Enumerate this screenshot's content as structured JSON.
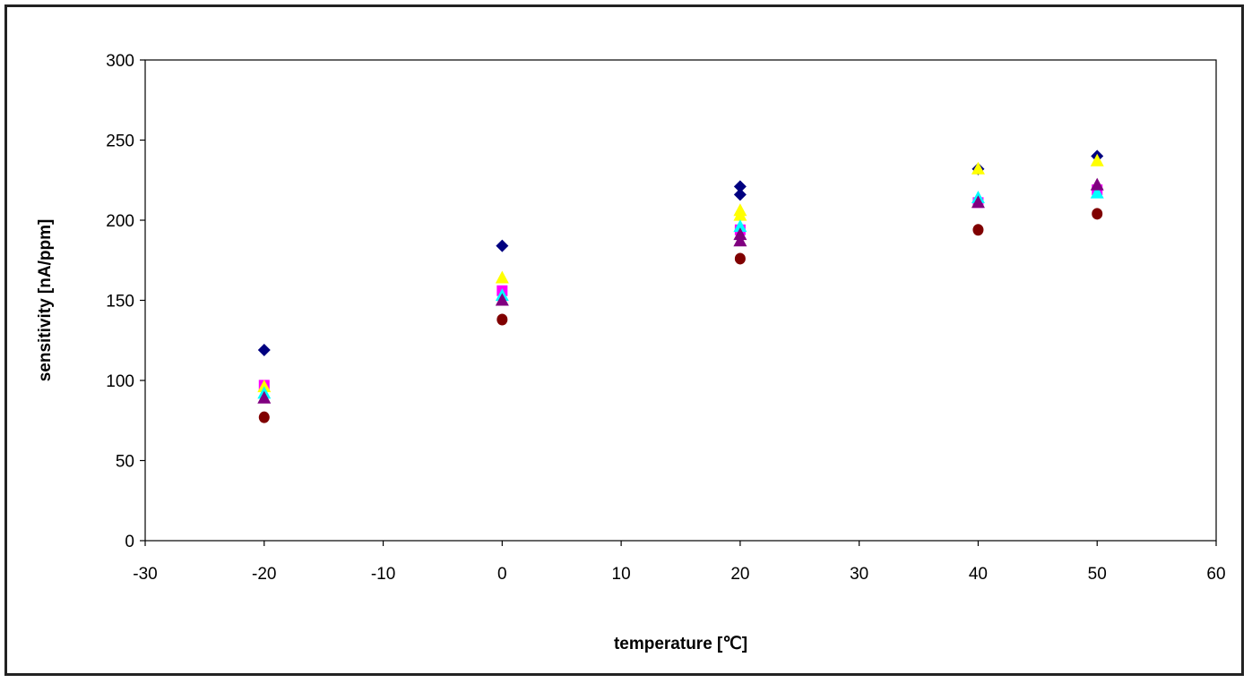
{
  "chart_data": {
    "type": "scatter",
    "title": "",
    "xlabel": "temperature [℃]",
    "ylabel": "sensitivity [nA/ppm]",
    "xlim": [
      -30,
      60
    ],
    "ylim": [
      0,
      300
    ],
    "xticks": [
      -30,
      -20,
      -10,
      0,
      10,
      20,
      30,
      40,
      50,
      60
    ],
    "yticks": [
      0,
      50,
      100,
      150,
      200,
      250,
      300
    ],
    "grid": false,
    "legend": "none",
    "series": [
      {
        "marker": "diamond",
        "color": "#000080",
        "x": [
          -20,
          0,
          20,
          20,
          40,
          50
        ],
        "y": [
          119,
          184,
          221,
          216,
          232,
          240
        ]
      },
      {
        "marker": "square",
        "color": "#ff00ff",
        "x": [
          -20,
          0,
          20,
          40,
          50
        ],
        "y": [
          97,
          156,
          194,
          211,
          219
        ]
      },
      {
        "marker": "triangle",
        "color": "#ffff00",
        "x": [
          -20,
          0,
          20,
          20,
          40,
          50
        ],
        "y": [
          96,
          164,
          206,
          203,
          232,
          237
        ]
      },
      {
        "marker": "triangle",
        "color": "#00ffff",
        "x": [
          -20,
          0,
          20,
          40,
          50
        ],
        "y": [
          92,
          153,
          196,
          214,
          217
        ]
      },
      {
        "marker": "triangle",
        "color": "#800080",
        "x": [
          -20,
          0,
          20,
          20,
          40,
          50
        ],
        "y": [
          89,
          150,
          191,
          187,
          211,
          222
        ]
      },
      {
        "marker": "circle",
        "color": "#800000",
        "x": [
          -20,
          0,
          20,
          40,
          50
        ],
        "y": [
          77,
          138,
          176,
          194,
          204
        ]
      }
    ]
  }
}
